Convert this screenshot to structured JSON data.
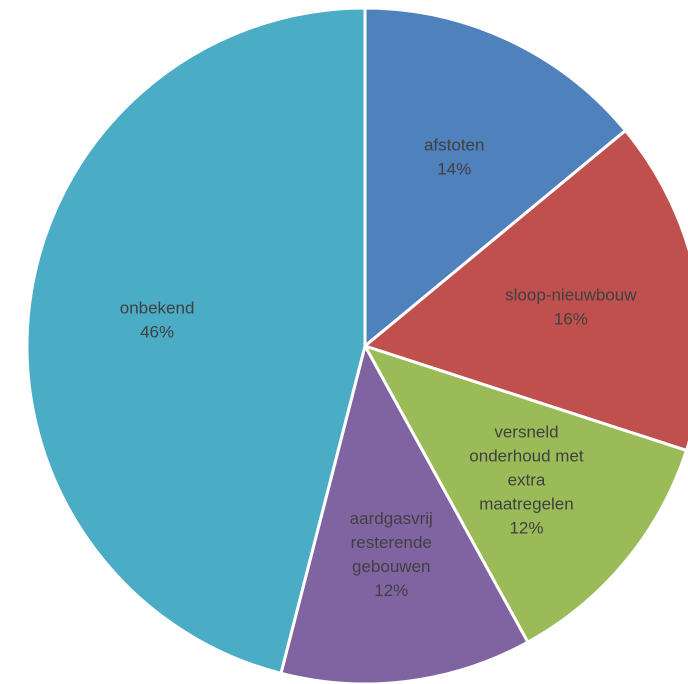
{
  "chart_data": {
    "type": "pie",
    "title": "",
    "slices": [
      {
        "label_lines": [
          "afstoten"
        ],
        "percent_label": "14%",
        "value": 14,
        "color": "#4f81bd"
      },
      {
        "label_lines": [
          "sloop-nieuwbouw"
        ],
        "percent_label": "16%",
        "value": 16,
        "color": "#c0504d"
      },
      {
        "label_lines": [
          "versneld",
          "onderhoud met",
          "extra",
          "maatregelen"
        ],
        "percent_label": "12%",
        "value": 12,
        "color": "#9bbb59"
      },
      {
        "label_lines": [
          "aardgasvrij",
          "resterende",
          "gebouwen"
        ],
        "percent_label": "12%",
        "value": 12,
        "color": "#8064a2"
      },
      {
        "label_lines": [
          "onbekend"
        ],
        "percent_label": "46%",
        "value": 46,
        "color": "#4bacc6"
      }
    ],
    "label_colors": {
      "afstoten": "#404040",
      "sloop-nieuwbouw": "#404040",
      "versneld onderhoud met extra maatregelen": "#404040",
      "aardgasvrij resterende gebouwen": "#d9d9d9",
      "onbekend": "#404040"
    },
    "start_angle": "12 o'clock",
    "direction": "clockwise",
    "legend": "none"
  }
}
